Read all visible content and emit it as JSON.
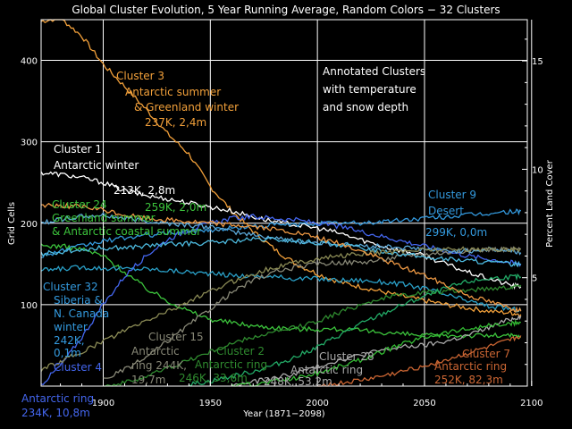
{
  "chart_data": {
    "type": "line",
    "title": "Global Cluster Evolution, 5 Year Running Average, Random Colors − 32 Clusters",
    "xlabel": "Year (1871−2098)",
    "ylabel": "Grid Cells",
    "y2label": "Percent Land Cover",
    "xlim": [
      1871,
      2098
    ],
    "ylim": [
      0,
      450
    ],
    "y2lim": [
      0,
      16.9
    ],
    "x_ticks": [
      1900,
      1950,
      2000,
      2050,
      2100
    ],
    "y_ticks": [
      100,
      200,
      300,
      400
    ],
    "y2_ticks": [
      5,
      10,
      15
    ],
    "grid": true,
    "annotation_box": [
      "Annotated Clusters",
      "with temperature",
      "and snow depth"
    ],
    "series": [
      {
        "name": "Cluster 3",
        "color": "#f2a03a",
        "x": [
          1871,
          1880,
          1890,
          1900,
          1910,
          1920,
          1930,
          1940,
          1950,
          1960,
          1970,
          1980,
          1990,
          2000,
          2010,
          2020,
          2030,
          2040,
          2050,
          2060,
          2070,
          2080,
          2090,
          2095
        ],
        "y": [
          448,
          452,
          430,
          395,
          368,
          340,
          310,
          285,
          245,
          215,
          190,
          168,
          150,
          138,
          128,
          122,
          116,
          110,
          105,
          100,
          96,
          92,
          90,
          88
        ]
      },
      {
        "name": "Cluster 1",
        "color": "#ffffff",
        "x": [
          1871,
          1880,
          1890,
          1900,
          1910,
          1920,
          1930,
          1940,
          1950,
          1960,
          1970,
          1980,
          1990,
          2000,
          2010,
          2020,
          2030,
          2040,
          2050,
          2060,
          2070,
          2080,
          2090,
          2095
        ],
        "y": [
          262,
          260,
          256,
          250,
          240,
          234,
          230,
          225,
          220,
          215,
          208,
          202,
          198,
          194,
          188,
          180,
          172,
          166,
          160,
          150,
          140,
          132,
          124,
          122
        ]
      },
      {
        "name": "Cluster 24",
        "color": "#3cc43c",
        "x": [
          1871,
          1880,
          1890,
          1900,
          1910,
          1920,
          1930,
          1940,
          1950,
          1960,
          1970,
          1980,
          1990,
          2000,
          2010,
          2020,
          2030,
          2040,
          2050,
          2060,
          2070,
          2080,
          2090,
          2095
        ],
        "y": [
          172,
          172,
          168,
          160,
          140,
          120,
          105,
          92,
          82,
          78,
          74,
          72,
          70,
          70,
          70,
          68,
          66,
          64,
          62,
          62,
          62,
          62,
          62,
          60
        ]
      },
      {
        "name": "Cluster 9",
        "color": "#3399dd",
        "x": [
          1871,
          1880,
          1890,
          1900,
          1910,
          1920,
          1930,
          1940,
          1950,
          1960,
          1970,
          1980,
          1990,
          2000,
          2010,
          2020,
          2030,
          2040,
          2050,
          2060,
          2070,
          2080,
          2090,
          2095
        ],
        "y": [
          160,
          166,
          172,
          178,
          182,
          185,
          188,
          190,
          192,
          194,
          196,
          198,
          198,
          200,
          200,
          200,
          202,
          204,
          206,
          208,
          210,
          212,
          214,
          215
        ]
      },
      {
        "name": "Cluster 32",
        "color": "#2aa0c8",
        "x": [
          1871,
          1880,
          1890,
          1900,
          1910,
          1920,
          1930,
          1940,
          1950,
          1960,
          1970,
          1980,
          1990,
          2000,
          2010,
          2020,
          2030,
          2040,
          2050,
          2060,
          2070,
          2080,
          2090,
          2095
        ],
        "y": [
          142,
          144,
          146,
          145,
          144,
          144,
          142,
          140,
          138,
          136,
          135,
          134,
          132,
          132,
          130,
          130,
          128,
          125,
          120,
          112,
          105,
          98,
          95,
          93
        ]
      },
      {
        "name": "Cluster 4",
        "color": "#4466ee",
        "x": [
          1871,
          1880,
          1890,
          1900,
          1910,
          1920,
          1930,
          1940,
          1950,
          1960,
          1970,
          1980,
          1990,
          2000,
          2010,
          2020,
          2030,
          2040,
          2050,
          2060,
          2070,
          2080,
          2090,
          2095
        ],
        "y": [
          2,
          25,
          60,
          100,
          135,
          160,
          180,
          192,
          200,
          206,
          208,
          206,
          204,
          200,
          196,
          190,
          184,
          178,
          172,
          166,
          160,
          156,
          152,
          150
        ]
      },
      {
        "name": "Cluster 15",
        "color": "#888877",
        "x": [
          1900,
          1910,
          1920,
          1930,
          1940,
          1950,
          1960,
          1970,
          1980,
          1990,
          2000,
          2010,
          2020,
          2030,
          2040,
          2050,
          2060,
          2070,
          2080,
          2090,
          2095
        ],
        "y": [
          8,
          20,
          35,
          55,
          75,
          95,
          115,
          130,
          140,
          146,
          150,
          152,
          152,
          155,
          160,
          162,
          164,
          166,
          168,
          168,
          168
        ]
      },
      {
        "name": "Cluster 2",
        "color": "#2f8a2f",
        "x": [
          1900,
          1910,
          1920,
          1930,
          1940,
          1950,
          1960,
          1970,
          1980,
          1990,
          2000,
          2010,
          2020,
          2030,
          2040,
          2050,
          2060,
          2070,
          2080,
          2090,
          2095
        ],
        "y": [
          0,
          4,
          12,
          22,
          32,
          42,
          52,
          60,
          66,
          72,
          80,
          90,
          100,
          108,
          112,
          115,
          116,
          118,
          120,
          122,
          124
        ]
      },
      {
        "name": "Cluster 28",
        "color": "#aaaaaa",
        "x": [
          1960,
          1970,
          1980,
          1990,
          2000,
          2010,
          2020,
          2030,
          2040,
          2050,
          2060,
          2070,
          2080,
          2090,
          2095
        ],
        "y": [
          0,
          5,
          10,
          16,
          24,
          32,
          38,
          44,
          48,
          50,
          55,
          62,
          72,
          82,
          86
        ]
      },
      {
        "name": "Cluster 7",
        "color": "#cc6633",
        "x": [
          2000,
          2010,
          2020,
          2030,
          2040,
          2050,
          2060,
          2070,
          2080,
          2090,
          2095
        ],
        "y": [
          0,
          3,
          7,
          12,
          18,
          25,
          32,
          40,
          48,
          56,
          62
        ]
      },
      {
        "name": "",
        "color": "#5aa8d8",
        "x": [
          1871,
          1880,
          1890,
          1900,
          1910,
          1920,
          1930,
          1940,
          1950,
          1960,
          1970,
          1980,
          1990,
          2000,
          2010,
          2020,
          2030,
          2040,
          2050,
          2060,
          2070,
          2080,
          2090,
          2095
        ],
        "y": [
          200,
          205,
          208,
          210,
          206,
          203,
          200,
          198,
          195,
          190,
          186,
          182,
          178,
          176,
          174,
          172,
          172,
          170,
          168,
          166,
          166,
          168,
          166,
          164
        ]
      },
      {
        "name": "",
        "color": "#4dbbe0",
        "x": [
          1871,
          1880,
          1890,
          1900,
          1910,
          1920,
          1930,
          1940,
          1950,
          1960,
          1970,
          1980,
          1990,
          2000,
          2010,
          2020,
          2030,
          2040,
          2050,
          2060,
          2070,
          2080,
          2090,
          2095
        ],
        "y": [
          162,
          165,
          168,
          170,
          170,
          172,
          174,
          175,
          176,
          178,
          180,
          180,
          178,
          176,
          174,
          170,
          166,
          162,
          158,
          156,
          154,
          152,
          150,
          150
        ]
      },
      {
        "name": "",
        "color": "#8a8a55",
        "x": [
          1871,
          1880,
          1890,
          1900,
          1910,
          1920,
          1930,
          1940,
          1950,
          1960,
          1970,
          1980,
          1990,
          2000,
          2010,
          2020,
          2030,
          2040,
          2050,
          2060,
          2070,
          2080,
          2090,
          2095
        ],
        "y": [
          20,
          30,
          42,
          55,
          68,
          80,
          92,
          104,
          116,
          128,
          138,
          146,
          152,
          156,
          160,
          162,
          164,
          166,
          168,
          168,
          168,
          168,
          168,
          168
        ]
      },
      {
        "name": "",
        "color": "#22aa66",
        "x": [
          1940,
          1950,
          1960,
          1970,
          1980,
          1990,
          2000,
          2010,
          2020,
          2030,
          2040,
          2050,
          2060,
          2070,
          2080,
          2090,
          2095
        ],
        "y": [
          2,
          6,
          12,
          18,
          26,
          36,
          48,
          62,
          76,
          88,
          100,
          110,
          120,
          128,
          132,
          134,
          134
        ]
      },
      {
        "name": "",
        "color": "#ee9944",
        "x": [
          1871,
          1880,
          1890,
          1900,
          1910,
          1920,
          1930,
          1940,
          1950,
          1960,
          1970,
          1980,
          1990,
          2000,
          2010,
          2020,
          2030,
          2040,
          2050,
          2060,
          2070,
          2080,
          2090,
          2095
        ],
        "y": [
          222,
          222,
          220,
          216,
          210,
          206,
          204,
          202,
          200,
          198,
          196,
          192,
          188,
          182,
          175,
          166,
          156,
          146,
          136,
          124,
          112,
          104,
          96,
          92
        ]
      },
      {
        "name": "",
        "color": "#33bb33",
        "x": [
          1960,
          1970,
          1980,
          1990,
          2000,
          2010,
          2020,
          2030,
          2040,
          2050,
          2060,
          2070,
          2080,
          2090,
          2095
        ],
        "y": [
          0,
          2,
          6,
          10,
          16,
          24,
          32,
          42,
          52,
          60,
          66,
          70,
          74,
          76,
          78
        ]
      }
    ],
    "annotations": [
      {
        "color": "#f2a03a",
        "lines": [
          "Cluster 3",
          "Antarctic summer",
          "& Greenland winter",
          "237K, 2,4m"
        ]
      },
      {
        "color": "#ffffff",
        "lines": [
          "Cluster 1",
          "Antarctic winter",
          "213K, 2,8m"
        ]
      },
      {
        "color": "#3cc43c",
        "lines": [
          "259K, 2,0m"
        ]
      },
      {
        "color": "#3cc43c",
        "lines": [
          "Cluster 24",
          "Greenland summer",
          "& Antarctic coastal summer"
        ]
      },
      {
        "color": "#3399dd",
        "lines": [
          "Cluster 9",
          "Desert",
          "299K, 0,0m"
        ]
      },
      {
        "color": "#3399dd",
        "lines": [
          "Cluster 32",
          "Siberia &",
          "N. Canada",
          "winter",
          "242K,",
          "0,1m"
        ]
      },
      {
        "color": "#4466ee",
        "lines": [
          "Cluster 4"
        ]
      },
      {
        "color": "#4466ee",
        "lines": [
          "Antarctic ring",
          "234K, 10,8m"
        ]
      },
      {
        "color": "#888877",
        "lines": [
          "Cluster 15",
          "Antarctic",
          "ring 244K,",
          "19,7m"
        ]
      },
      {
        "color": "#2f8a2f",
        "lines": [
          "Cluster 2",
          "Antarctic ring",
          "246K, 33,6m"
        ]
      },
      {
        "color": "#aaaaaa",
        "lines": [
          "Cluster 28",
          "Antarctic ring",
          "248K, 53,2m"
        ]
      },
      {
        "color": "#cc6633",
        "lines": [
          "Cluster 7",
          "Antarctic ring",
          "252K, 82,3m"
        ]
      }
    ]
  }
}
